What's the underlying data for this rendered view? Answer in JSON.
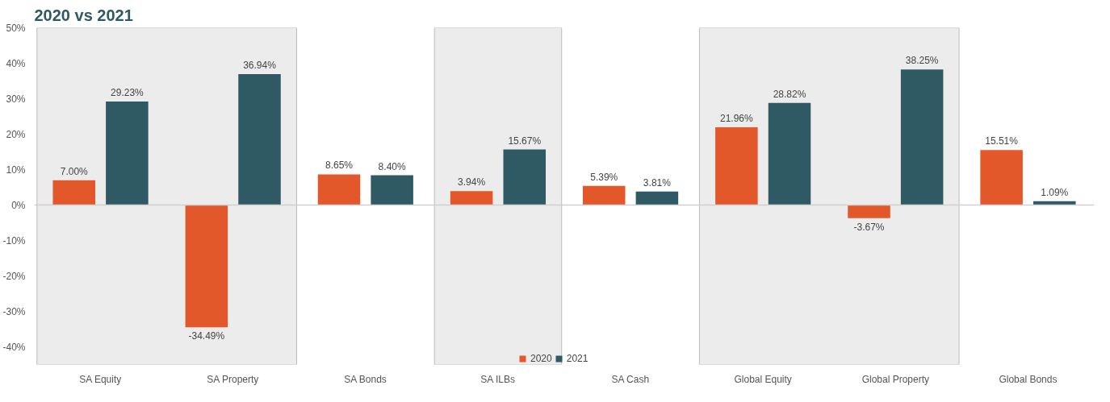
{
  "chart_data": {
    "type": "bar",
    "title": "2020 vs 2021",
    "categories": [
      "SA Equity",
      "SA Property",
      "SA Bonds",
      "SA ILBs",
      "SA Cash",
      "Global Equity",
      "Global Property",
      "Global Bonds"
    ],
    "series": [
      {
        "name": "2020",
        "color": "#e2582a",
        "values": [
          7.0,
          -34.49,
          8.65,
          3.94,
          5.39,
          21.96,
          -3.67,
          15.51
        ],
        "value_labels": [
          "7.00%",
          "-34.49%",
          "8.65%",
          "3.94%",
          "5.39%",
          "21.96%",
          "-3.67%",
          "15.51%"
        ]
      },
      {
        "name": "2021",
        "color": "#2f5a63",
        "values": [
          29.23,
          36.94,
          8.4,
          15.67,
          3.81,
          28.82,
          38.25,
          1.09
        ],
        "value_labels": [
          "29.23%",
          "36.94%",
          "8.40%",
          "15.67%",
          "3.81%",
          "28.82%",
          "38.25%",
          "1.09%"
        ]
      }
    ],
    "ylim": [
      -45,
      50
    ],
    "yticks": [
      {
        "value": -40,
        "label": "-40%"
      },
      {
        "value": -30,
        "label": "-30%"
      },
      {
        "value": -20,
        "label": "-20%"
      },
      {
        "value": -10,
        "label": "-10%"
      },
      {
        "value": 0,
        "label": "0%"
      },
      {
        "value": 10,
        "label": "10%"
      },
      {
        "value": 20,
        "label": "20%"
      },
      {
        "value": 30,
        "label": "30%"
      },
      {
        "value": 40,
        "label": "40%"
      },
      {
        "value": 50,
        "label": "50%"
      }
    ],
    "bands": [
      {
        "axis": "x",
        "from": "SA Equity",
        "to": "SA Property",
        "color": "#e4e4e4"
      },
      {
        "axis": "x",
        "from": "SA ILBs",
        "to": "SA ILBs",
        "color": "#e4e4e4"
      },
      {
        "axis": "x",
        "from": "Global Equity",
        "to": "Global Property",
        "color": "#e4e4e4"
      }
    ],
    "ref_lines": [
      {
        "axis": "y",
        "value": 0,
        "color": "#d0d0d0"
      }
    ],
    "grid": false,
    "legend": "bottom"
  }
}
